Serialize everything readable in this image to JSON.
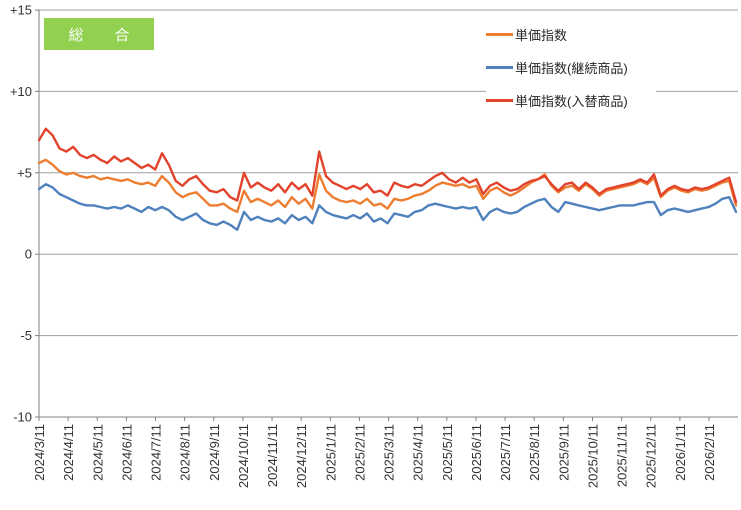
{
  "badge": {
    "label": "総　合",
    "color": "#92D050",
    "text_color": "#ffffff"
  },
  "legend": {
    "position": "top-right",
    "background": "#ffffff"
  },
  "axis_style": {
    "gridline_color": "#a0a0a0",
    "axis_color": "#808080",
    "tick_label_color": "#333333"
  },
  "chart_data": {
    "type": "line",
    "title": "総合",
    "xlabel": "",
    "ylabel": "",
    "ylim": [
      -10,
      15
    ],
    "grid": "horizontal",
    "legend_position": "top-right-inside",
    "y_ticks": {
      "labels": [
        "+15",
        "+10",
        "+5",
        "0",
        "-5",
        "-10"
      ],
      "values": [
        15,
        10,
        5,
        0,
        -5,
        -10
      ]
    },
    "x_ticks": {
      "labels": [
        "2024/3/11",
        "2024/4/11",
        "2024/5/11",
        "2024/6/11",
        "2024/7/11",
        "2024/8/11",
        "2024/9/11",
        "2024/10/11",
        "2024/11/11",
        "2024/12/11",
        "2025/1/11",
        "2025/2/11",
        "2025/3/11",
        "2025/4/11",
        "2025/5/11",
        "2025/6/11",
        "2025/7/11",
        "2025/8/11",
        "2025/9/11",
        "2025/10/11",
        "2025/11/11",
        "2025/12/11",
        "2026/1/11",
        "2026/2/11"
      ],
      "interval": "monthly",
      "data_interval": "weekly",
      "rotation": -90
    },
    "series": [
      {
        "name": "単価指数",
        "color": "#ED7D31",
        "values": [
          5.6,
          5.8,
          5.5,
          5.1,
          4.9,
          5.0,
          4.8,
          4.7,
          4.8,
          4.6,
          4.7,
          4.6,
          4.5,
          4.6,
          4.4,
          4.3,
          4.4,
          4.2,
          4.8,
          4.4,
          3.8,
          3.5,
          3.7,
          3.8,
          3.4,
          3.0,
          3.0,
          3.1,
          2.8,
          2.6,
          3.9,
          3.2,
          3.4,
          3.2,
          3.0,
          3.3,
          2.9,
          3.5,
          3.1,
          3.4,
          2.8,
          4.9,
          3.9,
          3.5,
          3.3,
          3.2,
          3.3,
          3.1,
          3.4,
          3.0,
          3.1,
          2.8,
          3.4,
          3.3,
          3.4,
          3.6,
          3.7,
          3.9,
          4.2,
          4.4,
          4.3,
          4.2,
          4.3,
          4.1,
          4.2,
          3.4,
          3.9,
          4.1,
          3.8,
          3.6,
          3.8,
          4.1,
          4.4,
          4.6,
          4.9,
          4.2,
          3.8,
          4.1,
          4.2,
          3.9,
          4.3,
          4.0,
          3.6,
          3.9,
          4.0,
          4.1,
          4.2,
          4.3,
          4.5,
          4.3,
          4.7,
          3.5,
          3.9,
          4.1,
          3.9,
          3.8,
          4.0,
          3.9,
          4.0,
          4.2,
          4.4,
          4.5,
          3.0
        ]
      },
      {
        "name": "単価指数(継続商品)",
        "color": "#4F81BD",
        "values": [
          4.0,
          4.3,
          4.1,
          3.7,
          3.5,
          3.3,
          3.1,
          3.0,
          3.0,
          2.9,
          2.8,
          2.9,
          2.8,
          3.0,
          2.8,
          2.6,
          2.9,
          2.7,
          2.9,
          2.7,
          2.3,
          2.1,
          2.3,
          2.5,
          2.1,
          1.9,
          1.8,
          2.0,
          1.8,
          1.5,
          2.6,
          2.1,
          2.3,
          2.1,
          2.0,
          2.2,
          1.9,
          2.4,
          2.1,
          2.3,
          1.9,
          3.0,
          2.6,
          2.4,
          2.3,
          2.2,
          2.4,
          2.2,
          2.5,
          2.0,
          2.2,
          1.9,
          2.5,
          2.4,
          2.3,
          2.6,
          2.7,
          3.0,
          3.1,
          3.0,
          2.9,
          2.8,
          2.9,
          2.8,
          2.9,
          2.1,
          2.6,
          2.8,
          2.6,
          2.5,
          2.6,
          2.9,
          3.1,
          3.3,
          3.4,
          2.9,
          2.6,
          3.2,
          3.1,
          3.0,
          2.9,
          2.8,
          2.7,
          2.8,
          2.9,
          3.0,
          3.0,
          3.0,
          3.1,
          3.2,
          3.2,
          2.4,
          2.7,
          2.8,
          2.7,
          2.6,
          2.7,
          2.8,
          2.9,
          3.1,
          3.4,
          3.5,
          2.6
        ]
      },
      {
        "name": "単価指数(入替商品)",
        "color": "#E2432C",
        "values": [
          7.0,
          7.7,
          7.3,
          6.5,
          6.3,
          6.6,
          6.1,
          5.9,
          6.1,
          5.8,
          5.6,
          6.0,
          5.7,
          5.9,
          5.6,
          5.3,
          5.5,
          5.2,
          6.2,
          5.5,
          4.5,
          4.2,
          4.6,
          4.8,
          4.3,
          3.9,
          3.8,
          4.0,
          3.5,
          3.3,
          5.0,
          4.1,
          4.4,
          4.1,
          3.9,
          4.3,
          3.8,
          4.4,
          4.0,
          4.3,
          3.6,
          6.3,
          4.8,
          4.4,
          4.2,
          4.0,
          4.2,
          4.0,
          4.3,
          3.8,
          3.9,
          3.6,
          4.4,
          4.2,
          4.1,
          4.3,
          4.2,
          4.5,
          4.8,
          5.0,
          4.6,
          4.4,
          4.7,
          4.4,
          4.6,
          3.7,
          4.2,
          4.4,
          4.1,
          3.9,
          4.0,
          4.3,
          4.5,
          4.6,
          4.8,
          4.3,
          3.9,
          4.3,
          4.4,
          4.0,
          4.4,
          4.1,
          3.7,
          4.0,
          4.1,
          4.2,
          4.3,
          4.4,
          4.6,
          4.4,
          4.9,
          3.6,
          4.0,
          4.2,
          4.0,
          3.9,
          4.1,
          4.0,
          4.1,
          4.3,
          4.5,
          4.7,
          3.2
        ]
      }
    ]
  }
}
